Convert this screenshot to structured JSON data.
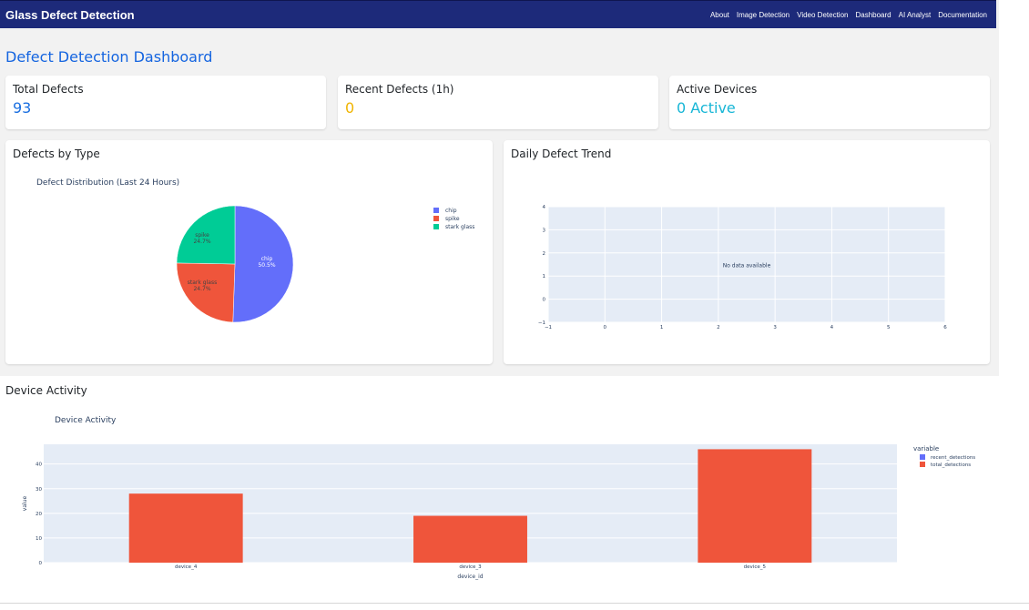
{
  "app": {
    "brand": "Glass Defect Detection"
  },
  "nav": {
    "links": [
      "About",
      "Image Detection",
      "Video Detection",
      "Dashboard",
      "AI Analyst",
      "Documentation"
    ]
  },
  "dashboard": {
    "title": "Defect Detection Dashboard"
  },
  "stats": {
    "total": {
      "label": "Total Defects",
      "value": "93",
      "color": "#1a6fe0"
    },
    "recent": {
      "label": "Recent Defects (1h)",
      "value": "0",
      "color": "#f0b400"
    },
    "devices": {
      "label": "Active Devices",
      "value": "0 Active",
      "color": "#17b6d6"
    }
  },
  "pie_card": {
    "title": "Defects by Type"
  },
  "trend_card": {
    "title": "Daily Defect Trend"
  },
  "device_section": {
    "title": "Device Activity"
  },
  "chart_data": [
    {
      "type": "pie",
      "title": "Defect Distribution (Last 24 Hours)",
      "labels": [
        "chip",
        "spike",
        "stark glass"
      ],
      "values": [
        50.5,
        24.7,
        24.7
      ],
      "slice_labels": [
        "chip\n50.5%",
        "spike\n24.7%",
        "stark glass\n24.7%"
      ],
      "colors": [
        "#636efa",
        "#ef553b",
        "#00cc96"
      ],
      "legend": "right"
    },
    {
      "type": "line",
      "title": "",
      "annotation": "No data available",
      "xlim": [
        -1,
        6
      ],
      "ylim": [
        -1,
        4
      ],
      "x_ticks": [
        "−1",
        "0",
        "1",
        "2",
        "3",
        "4",
        "5",
        "6"
      ],
      "y_ticks": [
        "−1",
        "0",
        "1",
        "2",
        "3",
        "4"
      ],
      "grid": true
    },
    {
      "type": "bar",
      "title": "Device Activity",
      "categories": [
        "device_4",
        "device_3",
        "device_5"
      ],
      "series": [
        {
          "name": "recent_detections",
          "values": [
            0,
            0,
            0
          ],
          "color": "#636efa"
        },
        {
          "name": "total_detections",
          "values": [
            28,
            19,
            46
          ],
          "color": "#ef553b"
        }
      ],
      "xlabel": "device_id",
      "ylabel": "value",
      "ylim": [
        0,
        48
      ],
      "y_ticks": [
        0,
        10,
        20,
        30,
        40
      ],
      "legend_title": "variable",
      "legend": "right",
      "grid": true
    }
  ]
}
